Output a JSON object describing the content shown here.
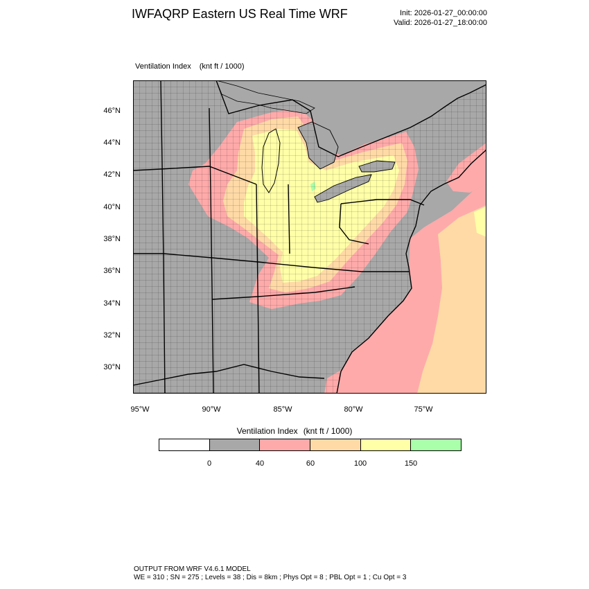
{
  "header": {
    "title": "IWFAQRP Eastern US Real Time WRF",
    "init": "Init: 2026-01-27_00:00:00",
    "valid": "Valid: 2026-01-27_18:00:00"
  },
  "map": {
    "field_label": "Ventilation Index",
    "field_units": "(knt ft / 1000)",
    "lat_labels": [
      "46°N",
      "44°N",
      "42°N",
      "40°N",
      "38°N",
      "36°N",
      "34°N",
      "32°N",
      "30°N"
    ],
    "lon_labels": [
      "95°W",
      "90°W",
      "85°W",
      "80°W",
      "75°W"
    ],
    "colors": {
      "land_below_40": "#a8a8a8",
      "band_40_60": "#ffaaaa",
      "band_60_100": "#ffdaa6",
      "band_100_150": "#ffffa8",
      "band_150_plus": "#aaffaa",
      "ocean_gray": "#a8a8a8"
    }
  },
  "legend": {
    "title": "Ventilation Index",
    "units": "(knt ft / 1000)",
    "colors": [
      "#ffffff",
      "#a8a8a8",
      "#ffaaaa",
      "#ffdaa6",
      "#ffffa8",
      "#aaffaa"
    ],
    "ticks": [
      "0",
      "40",
      "60",
      "100",
      "150"
    ]
  },
  "footer": {
    "line1": "OUTPUT FROM WRF V4.6.1 MODEL",
    "line2": "WE = 310 ; SN = 275 ; Levels = 38 ; Dis = 8km ; Phys Opt = 8 ; PBL Opt = 1 ; Cu Opt = 3"
  }
}
